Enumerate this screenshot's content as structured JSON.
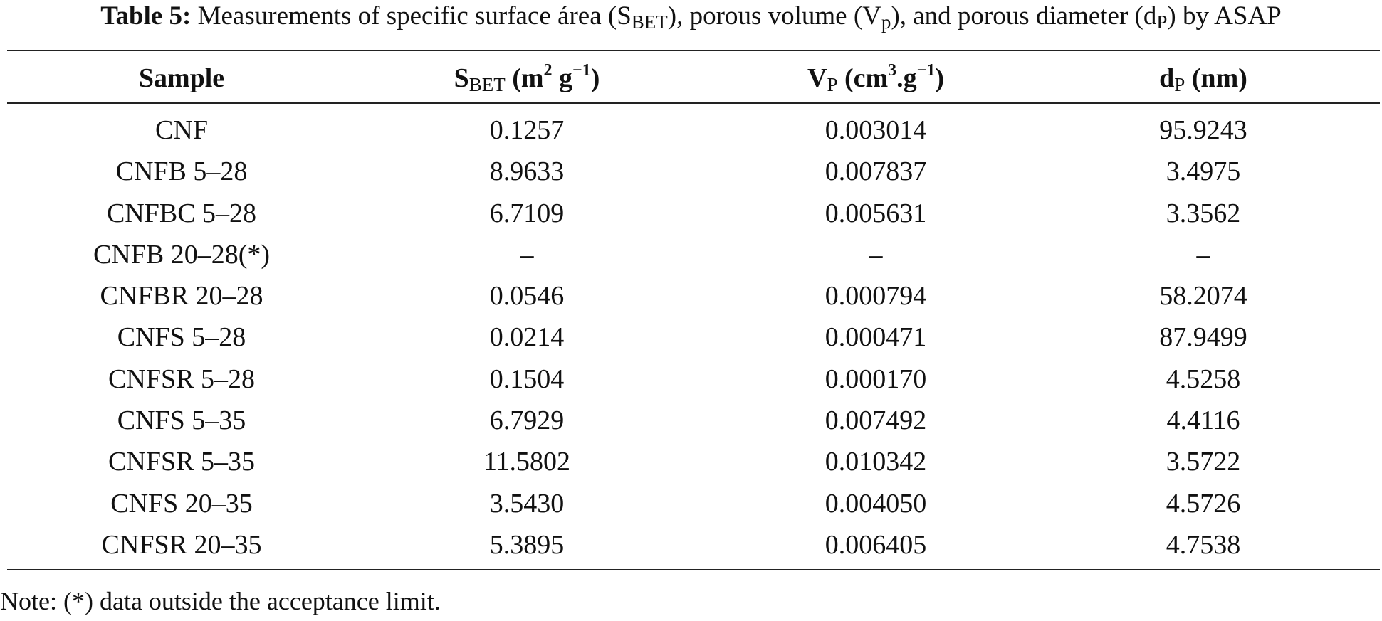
{
  "caption": {
    "label": "Table 5:",
    "t1": " Measurements of specific surface área (S",
    "t1_sub": "BET",
    "t2": "), porous volume (V",
    "t2_sub": "p",
    "t3": "), and porous diameter (d",
    "t3_sub": "P",
    "t4": ") by ASAP"
  },
  "headers": {
    "sample": "Sample",
    "sbet_main": "S",
    "sbet_sub": "BET",
    "sbet_unit_a": " (m",
    "sbet_sup_a": "2",
    "sbet_unit_b": " g",
    "sbet_sup_b": "−1",
    "sbet_unit_c": ")",
    "vp_main": "V",
    "vp_sub": "P",
    "vp_unit_a": " (cm",
    "vp_sup_a": "3",
    "vp_unit_b": ".g",
    "vp_sup_b": "−1",
    "vp_unit_c": ")",
    "dp_main": "d",
    "dp_sub": "P",
    "dp_unit": " (nm)"
  },
  "rows": [
    {
      "sample": "CNF",
      "sbet": "0.1257",
      "vp": "0.003014",
      "dp": "95.9243"
    },
    {
      "sample": "CNFB 5–28",
      "sbet": "8.9633",
      "vp": "0.007837",
      "dp": "3.4975"
    },
    {
      "sample": "CNFBC 5–28",
      "sbet": "6.7109",
      "vp": "0.005631",
      "dp": "3.3562"
    },
    {
      "sample": "CNFB 20–28(*)",
      "sbet": "–",
      "vp": "–",
      "dp": "–"
    },
    {
      "sample": "CNFBR 20–28",
      "sbet": "0.0546",
      "vp": "0.000794",
      "dp": "58.2074"
    },
    {
      "sample": "CNFS 5–28",
      "sbet": "0.0214",
      "vp": "0.000471",
      "dp": "87.9499"
    },
    {
      "sample": "CNFSR 5–28",
      "sbet": "0.1504",
      "vp": "0.000170",
      "dp": "4.5258"
    },
    {
      "sample": "CNFS 5–35",
      "sbet": "6.7929",
      "vp": "0.007492",
      "dp": "4.4116"
    },
    {
      "sample": "CNFSR 5–35",
      "sbet": "11.5802",
      "vp": "0.010342",
      "dp": "3.5722"
    },
    {
      "sample": "CNFS 20–35",
      "sbet": "3.5430",
      "vp": "0.004050",
      "dp": "4.5726"
    },
    {
      "sample": "CNFSR 20–35",
      "sbet": "5.3895",
      "vp": "0.006405",
      "dp": "4.7538"
    }
  ],
  "note": "Note: (*) data outside the acceptance limit."
}
